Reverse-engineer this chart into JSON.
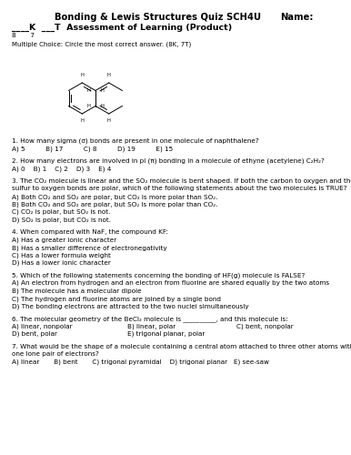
{
  "title": "Bonding & Lewis Structures Quiz SCH4U",
  "name_label": "Name:",
  "score_line1": "____K  ___T  Assessment of Learning (Product)",
  "score_nums": "8       7",
  "mc_instruction": "Multiple Choice: Circle the most correct answer. (8K, 7T)",
  "questions": [
    {
      "num": "1.",
      "text": "How many sigma (σ) bonds are present in one molecule of naphthalene?",
      "choices": "A) 5          B) 17          C) 8          D) 19          E) 15"
    },
    {
      "num": "2.",
      "text": "How many electrons are involved in pi (π) bonding in a molecule of ethyne (acetylene) C₂H₂?",
      "choices": "A) 0    B) 1    C) 2    D) 3    E) 4"
    },
    {
      "num": "3.",
      "text": "The CO₂ molecule is linear and the SO₂ molecule is bent shaped. If both the carbon to oxygen and the",
      "line2": "sulfur to oxygen bonds are polar, which of the following statements about the two molecules is TRUE?",
      "answers": [
        "A) Both CO₂ and SO₂ are polar, but CO₂ is more polar than SO₂.",
        "B) Both CO₂ and SO₂ are polar, but SO₂ is more polar than CO₂.",
        "C) CO₂ is polar, but SO₂ is not.",
        "D) SO₂ is polar, but CO₂ is not."
      ]
    },
    {
      "num": "4.",
      "text": "When compared with NaF, the compound KF:",
      "answers": [
        "A) Has a greater ionic character",
        "B) Has a smaller difference of electronegativity",
        "C) Has a lower formula weight",
        "D) Has a lower ionic character"
      ]
    },
    {
      "num": "5.",
      "text": "Which of the following statements concerning the bonding of HF(g) molecule is FALSE?",
      "answers": [
        "A) An electron from hydrogen and an electron from fluorine are shared equally by the two atoms",
        "B) The molecule has a molecular dipole",
        "C) The hydrogen and fluorine atoms are joined by a single bond",
        "D) The bonding electrons are attracted to the two nuclei simultaneously"
      ]
    },
    {
      "num": "6.",
      "text": "The molecular geometry of the BeCl₂ molecule is __________, and this molecule is:",
      "answers_cols": [
        [
          "A) linear, nonpolar",
          "D) bent, polar"
        ],
        [
          "B) linear, polar",
          "E) trigonal planar, polar"
        ],
        [
          "C) bent, nonpolar",
          ""
        ]
      ]
    },
    {
      "num": "7.",
      "text": "What would be the shape of a molecule containing a central atom attached to three other atoms with",
      "line2": "one lone pair of electrons?",
      "choices_row": "A) linear       B) bent       C) trigonal pyramidal    D) trigonal planar   E) see-saw"
    }
  ],
  "bg_color": "#ffffff",
  "text_color": "#000000",
  "font_size": 5.2,
  "title_font_size": 7.2,
  "header_font_size": 6.8
}
